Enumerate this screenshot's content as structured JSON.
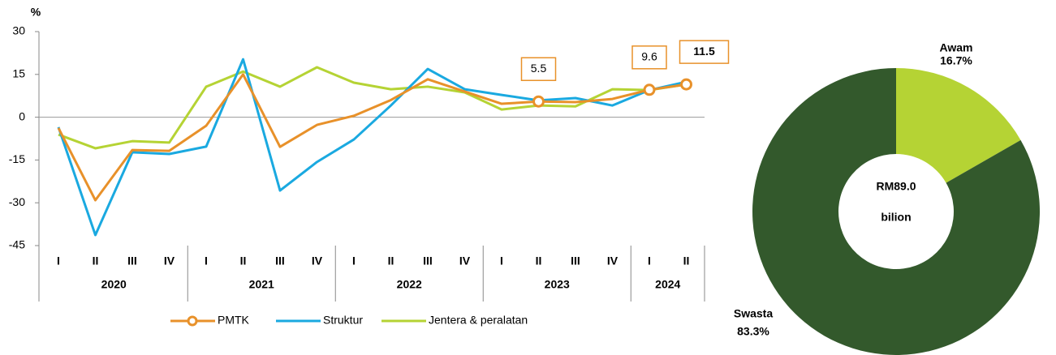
{
  "chart_data": [
    {
      "type": "line",
      "ylabel": "%",
      "categories": [
        "I",
        "II",
        "III",
        "IV",
        "I",
        "II",
        "III",
        "IV",
        "I",
        "II",
        "III",
        "IV",
        "I",
        "II",
        "III",
        "IV",
        "I",
        "II"
      ],
      "groups": [
        {
          "label": "2020",
          "span": 4
        },
        {
          "label": "2021",
          "span": 4
        },
        {
          "label": "2022",
          "span": 4
        },
        {
          "label": "2023",
          "span": 4
        },
        {
          "label": "2024",
          "span": 2
        }
      ],
      "ylim": [
        -45,
        30
      ],
      "yticks": [
        -45,
        -30,
        -15,
        0,
        15,
        30
      ],
      "series": [
        {
          "name": "PMTK",
          "color": "#e8912a",
          "values": [
            -3.8,
            -29.1,
            -11.5,
            -11.8,
            -3.0,
            15.0,
            -10.4,
            -2.7,
            0.5,
            6.0,
            13.3,
            9.0,
            4.7,
            5.5,
            5.3,
            6.4,
            9.6,
            11.5
          ],
          "value_labels": [
            null,
            null,
            null,
            null,
            null,
            null,
            null,
            null,
            null,
            null,
            null,
            null,
            null,
            "5.5",
            null,
            null,
            "9.6",
            "11.5"
          ]
        },
        {
          "name": "Struktur",
          "color": "#1aa9e0",
          "values": [
            -3.5,
            -41.3,
            -12.3,
            -12.9,
            -10.3,
            20.3,
            -25.7,
            -15.7,
            -7.8,
            4.1,
            16.9,
            9.8,
            7.8,
            5.9,
            6.7,
            4.1,
            9.5,
            12.4
          ]
        },
        {
          "name": "Jentera & peralatan",
          "color": "#b5d334",
          "values": [
            -6.1,
            -10.9,
            -8.4,
            -8.9,
            10.7,
            16.0,
            10.7,
            17.5,
            12.1,
            9.8,
            10.7,
            8.7,
            2.7,
            4.1,
            3.8,
            9.8,
            9.5,
            11.5
          ]
        }
      ]
    },
    {
      "type": "donut",
      "center_text": [
        "RM89.0",
        "bilion"
      ],
      "categories": [
        "Awam",
        "Swasta"
      ],
      "values": [
        16.7,
        83.3
      ],
      "value_labels": [
        "16.7%",
        "83.3%"
      ],
      "colors": [
        "#b5d334",
        "#33592c"
      ]
    }
  ]
}
